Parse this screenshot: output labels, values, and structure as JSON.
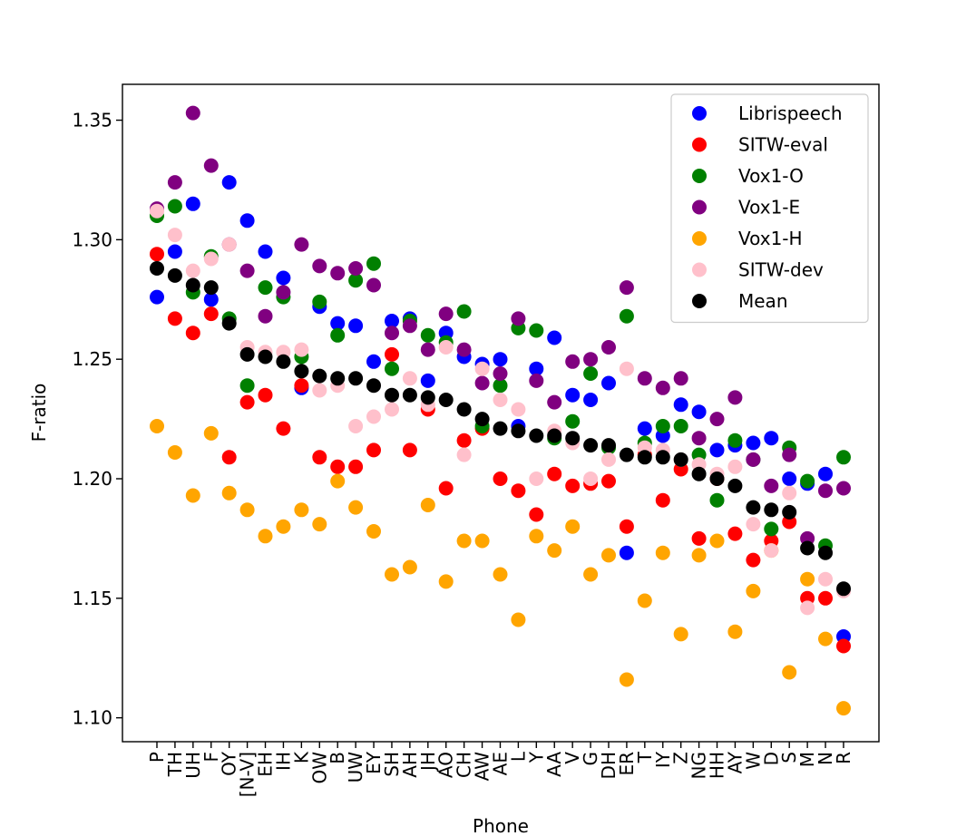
{
  "chart_data": {
    "type": "scatter",
    "title": "",
    "xlabel": "Phone",
    "ylabel": "F-ratio",
    "ylim": [
      1.09,
      1.365
    ],
    "yticks": [
      1.1,
      1.15,
      1.2,
      1.25,
      1.3,
      1.35
    ],
    "ytick_labels": [
      "1.10",
      "1.15",
      "1.20",
      "1.25",
      "1.30",
      "1.35"
    ],
    "categories": [
      "P",
      "TH",
      "UH",
      "F",
      "OY",
      "[N-V]",
      "EH",
      "IH",
      "K",
      "OW",
      "B",
      "UW",
      "EY",
      "SH",
      "AH",
      "JH",
      "AO",
      "CH",
      "AW",
      "AE",
      "L",
      "Y",
      "AA",
      "V",
      "G",
      "DH",
      "ER",
      "T",
      "IY",
      "Z",
      "NG",
      "HH",
      "AY",
      "W",
      "D",
      "S",
      "M",
      "N",
      "R"
    ],
    "legend_position": "upper right",
    "series": [
      {
        "name": "Librispeech",
        "color": "#0000ff",
        "values": [
          1.276,
          1.295,
          1.315,
          1.275,
          1.324,
          1.308,
          1.295,
          1.284,
          1.238,
          1.272,
          1.265,
          1.264,
          1.249,
          1.266,
          1.267,
          1.241,
          1.261,
          1.251,
          1.248,
          1.25,
          1.222,
          1.246,
          1.259,
          1.235,
          1.233,
          1.24,
          1.169,
          1.221,
          1.218,
          1.231,
          1.228,
          1.212,
          1.214,
          1.215,
          1.217,
          1.2,
          1.198,
          1.202,
          1.134
        ]
      },
      {
        "name": "SITW-eval",
        "color": "#ff0000",
        "values": [
          1.294,
          1.267,
          1.261,
          1.269,
          1.209,
          1.232,
          1.235,
          1.221,
          1.239,
          1.209,
          1.205,
          1.205,
          1.212,
          1.252,
          1.212,
          1.229,
          1.196,
          1.216,
          1.221,
          1.2,
          1.195,
          1.185,
          1.202,
          1.197,
          1.198,
          1.199,
          1.18,
          1.21,
          1.191,
          1.204,
          1.175,
          1.2,
          1.177,
          1.166,
          1.174,
          1.182,
          1.15,
          1.15,
          1.13
        ]
      },
      {
        "name": "Vox1-O",
        "color": "#008000",
        "values": [
          1.31,
          1.314,
          1.278,
          1.293,
          1.267,
          1.239,
          1.28,
          1.276,
          1.251,
          1.274,
          1.26,
          1.283,
          1.29,
          1.246,
          1.266,
          1.26,
          1.257,
          1.27,
          1.222,
          1.239,
          1.263,
          1.262,
          1.217,
          1.224,
          1.244,
          1.213,
          1.268,
          1.215,
          1.222,
          1.222,
          1.21,
          1.191,
          1.216,
          1.208,
          1.179,
          1.213,
          1.199,
          1.172,
          1.209
        ]
      },
      {
        "name": "Vox1-E",
        "color": "#800080",
        "values": [
          1.313,
          1.324,
          1.353,
          1.331,
          1.298,
          1.287,
          1.268,
          1.278,
          1.298,
          1.289,
          1.286,
          1.288,
          1.281,
          1.261,
          1.264,
          1.254,
          1.269,
          1.254,
          1.24,
          1.244,
          1.267,
          1.241,
          1.232,
          1.249,
          1.25,
          1.255,
          1.28,
          1.242,
          1.238,
          1.242,
          1.217,
          1.225,
          1.234,
          1.208,
          1.197,
          1.21,
          1.175,
          1.195,
          1.196
        ]
      },
      {
        "name": "Vox1-H",
        "color": "#ffa500",
        "values": [
          1.222,
          1.211,
          1.193,
          1.219,
          1.194,
          1.187,
          1.176,
          1.18,
          1.187,
          1.181,
          1.199,
          1.188,
          1.178,
          1.16,
          1.163,
          1.189,
          1.157,
          1.174,
          1.174,
          1.16,
          1.141,
          1.176,
          1.17,
          1.18,
          1.16,
          1.168,
          1.116,
          1.149,
          1.169,
          1.135,
          1.168,
          1.174,
          1.136,
          1.153,
          1.17,
          1.119,
          1.158,
          1.133,
          1.104
        ]
      },
      {
        "name": "SITW-dev",
        "color": "#ffc0cb",
        "values": [
          1.312,
          1.302,
          1.287,
          1.292,
          1.298,
          1.255,
          1.253,
          1.253,
          1.254,
          1.237,
          1.239,
          1.222,
          1.226,
          1.229,
          1.242,
          1.231,
          1.255,
          1.21,
          1.246,
          1.233,
          1.229,
          1.2,
          1.22,
          1.215,
          1.2,
          1.208,
          1.246,
          1.213,
          1.212,
          1.208,
          1.206,
          1.202,
          1.205,
          1.181,
          1.17,
          1.194,
          1.146,
          1.158,
          1.153
        ]
      },
      {
        "name": "Mean",
        "color": "#000000",
        "values": [
          1.288,
          1.285,
          1.281,
          1.28,
          1.265,
          1.252,
          1.251,
          1.249,
          1.245,
          1.243,
          1.242,
          1.242,
          1.239,
          1.235,
          1.235,
          1.234,
          1.233,
          1.229,
          1.225,
          1.221,
          1.22,
          1.218,
          1.218,
          1.217,
          1.214,
          1.214,
          1.21,
          1.209,
          1.209,
          1.208,
          1.202,
          1.2,
          1.197,
          1.188,
          1.187,
          1.186,
          1.171,
          1.169,
          1.154
        ]
      }
    ]
  }
}
